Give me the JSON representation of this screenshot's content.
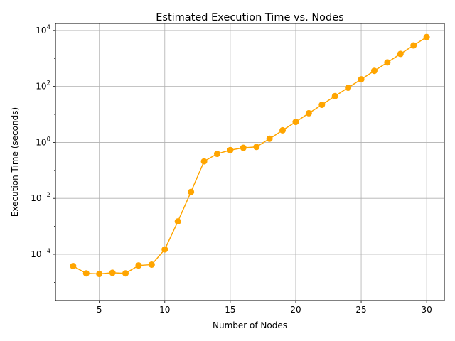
{
  "chart_data": {
    "type": "line",
    "title": "Estimated Execution Time vs. Nodes",
    "xlabel": "Number of Nodes",
    "ylabel": "Execution Time (seconds)",
    "x": [
      3,
      4,
      5,
      6,
      7,
      8,
      9,
      10,
      11,
      12,
      13,
      14,
      15,
      16,
      17,
      18,
      19,
      20,
      21,
      22,
      23,
      24,
      25,
      26,
      27,
      28,
      29,
      30
    ],
    "y": [
      3.8e-05,
      2.1e-05,
      2e-05,
      2.2e-05,
      2.1e-05,
      4e-05,
      4.3e-05,
      0.00015,
      0.0015,
      0.017,
      0.21,
      0.39,
      0.53,
      0.64,
      0.69,
      1.35,
      2.7,
      5.4,
      11,
      22,
      45,
      90,
      180,
      360,
      720,
      1450,
      2900,
      5800
    ],
    "xlim": [
      1.65,
      31.35
    ],
    "ylim_log10": [
      -5.65,
      4.25
    ],
    "yscale": "log",
    "xticks": [
      5,
      10,
      15,
      20,
      25,
      30
    ],
    "yticks_exp": [
      -4,
      -2,
      0,
      2,
      4
    ],
    "ytick_base": "10",
    "grid": true,
    "color": "#FFA500"
  }
}
